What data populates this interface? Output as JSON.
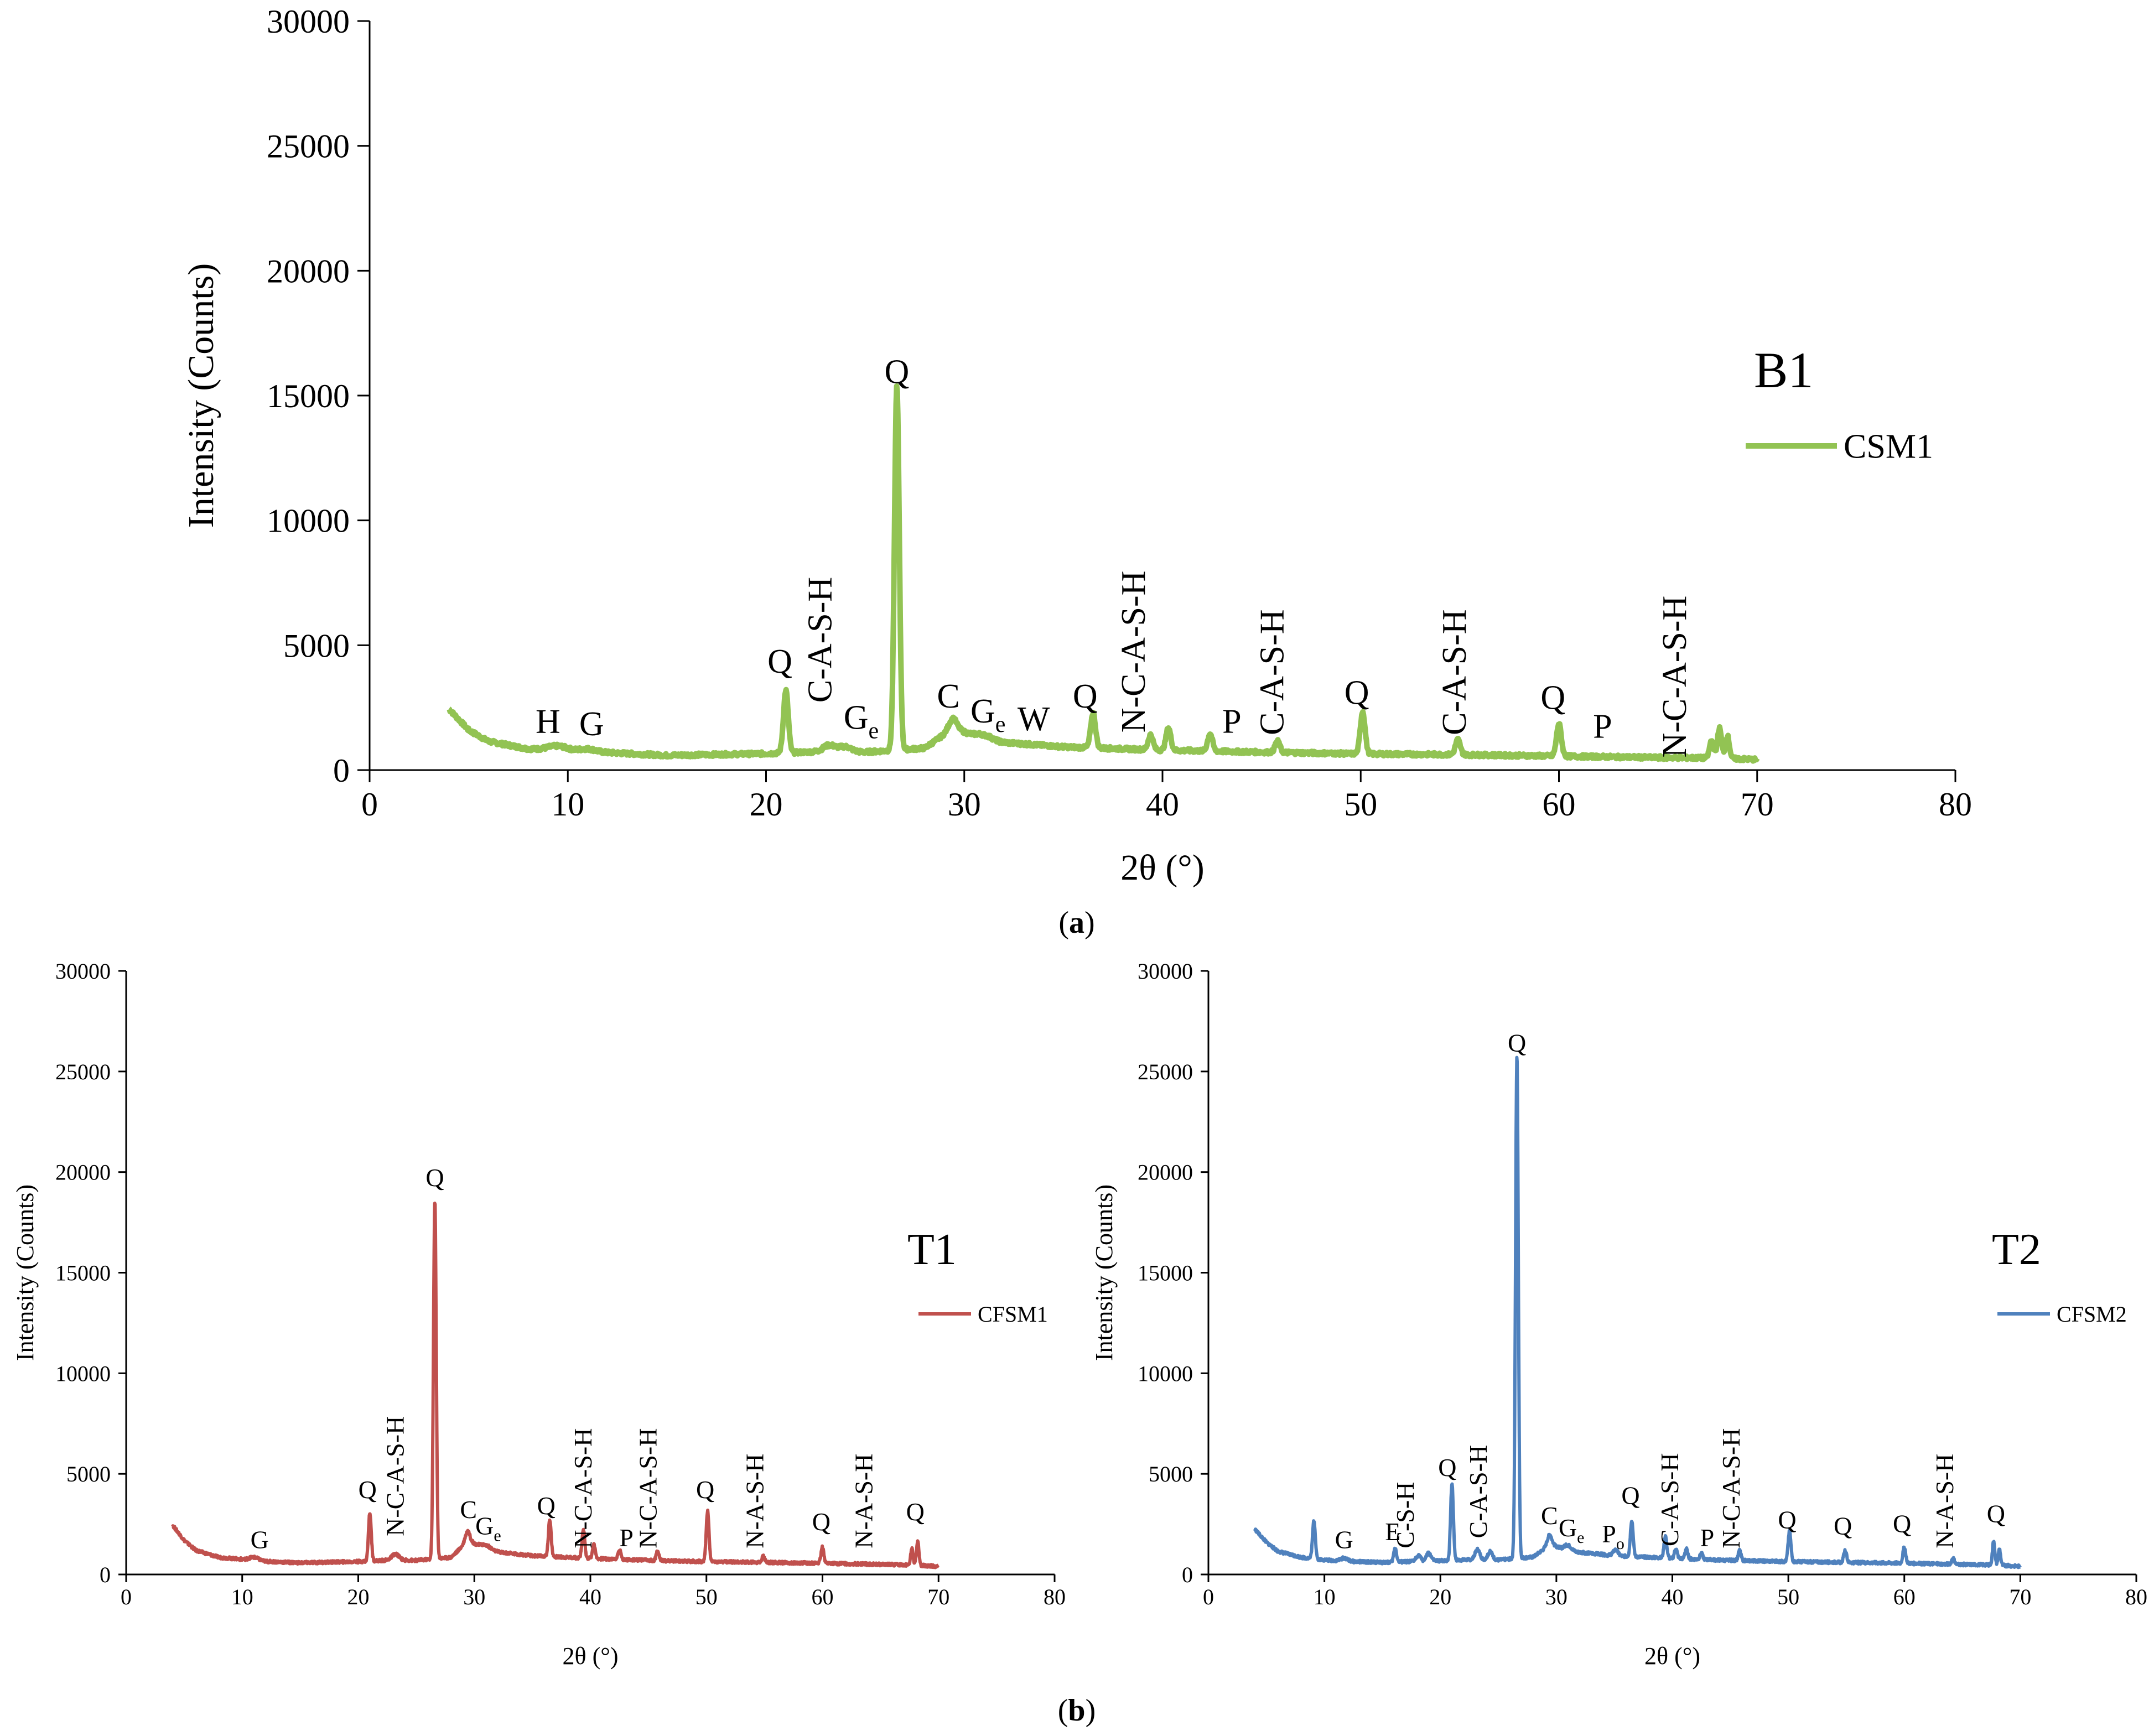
{
  "captions": {
    "a": "(a)",
    "a_letter": "a",
    "b": "(b)",
    "b_letter": "b"
  },
  "chart_data": [
    {
      "id": "a",
      "type": "line",
      "title": "B1",
      "legend": "CSM1",
      "legend_position": "right",
      "xlabel": "2θ (°)",
      "ylabel": "Intensity (Counts)",
      "xlim": [
        0,
        80
      ],
      "ylim": [
        0,
        30000
      ],
      "xticks": [
        0,
        10,
        20,
        30,
        40,
        50,
        60,
        70,
        80
      ],
      "yticks": [
        0,
        5000,
        10000,
        15000,
        20000,
        25000,
        30000
      ],
      "color": "#92C353",
      "baseline": [
        [
          4,
          2450
        ],
        [
          5,
          1600
        ],
        [
          6,
          1150
        ],
        [
          8,
          850
        ],
        [
          10,
          760
        ],
        [
          12,
          700
        ],
        [
          15,
          590
        ],
        [
          20,
          660
        ],
        [
          23,
          750
        ],
        [
          25,
          720
        ],
        [
          28,
          880
        ],
        [
          29.5,
          1700
        ],
        [
          31,
          1150
        ],
        [
          33,
          1050
        ],
        [
          35,
          930
        ],
        [
          40,
          800
        ],
        [
          45,
          720
        ],
        [
          50,
          650
        ],
        [
          55,
          620
        ],
        [
          60,
          560
        ],
        [
          65,
          500
        ],
        [
          68,
          480
        ],
        [
          70,
          420
        ]
      ],
      "peaks": [
        [
          9.5,
          180,
          0.5
        ],
        [
          11,
          120,
          0.4
        ],
        [
          21,
          2500,
          0.12
        ],
        [
          23.2,
          250,
          0.3
        ],
        [
          24,
          200,
          0.3
        ],
        [
          26.6,
          14600,
          0.12
        ],
        [
          29.4,
          400,
          0.2
        ],
        [
          31,
          250,
          0.4
        ],
        [
          36.5,
          1400,
          0.12
        ],
        [
          39.4,
          600,
          0.12
        ],
        [
          40.3,
          900,
          0.12
        ],
        [
          42.4,
          700,
          0.12
        ],
        [
          45.8,
          450,
          0.12
        ],
        [
          50.1,
          1700,
          0.12
        ],
        [
          54.9,
          600,
          0.12
        ],
        [
          60,
          1300,
          0.12
        ],
        [
          67.7,
          700,
          0.1
        ],
        [
          68.1,
          1200,
          0.1
        ],
        [
          68.5,
          900,
          0.1
        ]
      ],
      "annotations": [
        {
          "text": "H",
          "x": 9,
          "y": 1500
        },
        {
          "text": "G",
          "x": 11.2,
          "y": 1400
        },
        {
          "text": "Q",
          "x": 20.7,
          "y": 3900
        },
        {
          "text": "C-A-S-H",
          "x": 23.3,
          "y": 2700,
          "vertical": true
        },
        {
          "text": "G",
          "sub": "e",
          "x": 24.8,
          "y": 1650
        },
        {
          "text": "Q",
          "x": 26.6,
          "y": 15500
        },
        {
          "text": "C",
          "x": 29.2,
          "y": 2500
        },
        {
          "text": "G",
          "sub": "e",
          "x": 31.2,
          "y": 1900
        },
        {
          "text": "W",
          "x": 33.5,
          "y": 1600
        },
        {
          "text": "Q",
          "x": 36.1,
          "y": 2500
        },
        {
          "text": "N-C-A-S-H",
          "x": 39.1,
          "y": 1500,
          "vertical": true
        },
        {
          "text": "P",
          "x": 43.5,
          "y": 1500
        },
        {
          "text": "C-A-S-H",
          "x": 46.1,
          "y": 1400,
          "vertical": true
        },
        {
          "text": "Q",
          "x": 49.8,
          "y": 2650
        },
        {
          "text": "C-A-S-H",
          "x": 55.3,
          "y": 1400,
          "vertical": true
        },
        {
          "text": "Q",
          "x": 59.7,
          "y": 2450
        },
        {
          "text": "P",
          "x": 62.2,
          "y": 1300
        },
        {
          "text": "N-C-A-S-H",
          "x": 66.4,
          "y": 500,
          "vertical": true
        }
      ]
    },
    {
      "id": "T1",
      "type": "line",
      "title": "T1",
      "legend": "CFSM1",
      "legend_position": "right",
      "xlabel": "2θ (°)",
      "ylabel": "Intensity (Counts)",
      "xlim": [
        0,
        80
      ],
      "ylim": [
        0,
        30000
      ],
      "xticks": [
        0,
        10,
        20,
        30,
        40,
        50,
        60,
        70,
        80
      ],
      "yticks": [
        0,
        5000,
        10000,
        15000,
        20000,
        25000,
        30000
      ],
      "color": "#C0504D",
      "baseline": [
        [
          4,
          2450
        ],
        [
          5,
          1700
        ],
        [
          6,
          1200
        ],
        [
          8,
          850
        ],
        [
          10,
          750
        ],
        [
          12,
          650
        ],
        [
          15,
          580
        ],
        [
          20,
          640
        ],
        [
          23,
          720
        ],
        [
          25,
          700
        ],
        [
          28,
          850
        ],
        [
          29.5,
          1700
        ],
        [
          31,
          1200
        ],
        [
          33,
          1050
        ],
        [
          35,
          930
        ],
        [
          40,
          800
        ],
        [
          45,
          700
        ],
        [
          50,
          640
        ],
        [
          55,
          600
        ],
        [
          60,
          560
        ],
        [
          65,
          500
        ],
        [
          68,
          470
        ],
        [
          70,
          400
        ]
      ],
      "peaks": [
        [
          11,
          150,
          0.4
        ],
        [
          21,
          2400,
          0.12
        ],
        [
          23.2,
          300,
          0.3
        ],
        [
          26.6,
          17800,
          0.12
        ],
        [
          29.4,
          500,
          0.2
        ],
        [
          31,
          250,
          0.4
        ],
        [
          36.5,
          1800,
          0.12
        ],
        [
          39.4,
          1400,
          0.12
        ],
        [
          40.3,
          700,
          0.12
        ],
        [
          42.5,
          500,
          0.12
        ],
        [
          45.8,
          500,
          0.12
        ],
        [
          50.1,
          2500,
          0.12
        ],
        [
          54.9,
          300,
          0.12
        ],
        [
          60,
          800,
          0.12
        ],
        [
          67.7,
          800,
          0.1
        ],
        [
          68.2,
          1200,
          0.1
        ]
      ],
      "annotations": [
        {
          "text": "G",
          "x": 11.5,
          "y": 1300
        },
        {
          "text": "Q",
          "x": 20.8,
          "y": 3800
        },
        {
          "text": "N-C-A-S-H",
          "x": 23.9,
          "y": 1900,
          "vertical": true
        },
        {
          "text": "Q",
          "x": 26.6,
          "y": 19300
        },
        {
          "text": "C",
          "x": 29.5,
          "y": 2800
        },
        {
          "text": "G",
          "sub": "e",
          "x": 31.2,
          "y": 2000
        },
        {
          "text": "Q",
          "x": 36.2,
          "y": 3000
        },
        {
          "text": "N-C-A-S-H",
          "x": 40.1,
          "y": 1300,
          "vertical": true
        },
        {
          "text": "P",
          "x": 43.1,
          "y": 1400
        },
        {
          "text": "N-C-A-S-H",
          "x": 45.7,
          "y": 1300,
          "vertical": true
        },
        {
          "text": "Q",
          "x": 49.9,
          "y": 3800
        },
        {
          "text": "N-A-S-H",
          "x": 54.9,
          "y": 1300,
          "vertical": true
        },
        {
          "text": "Q",
          "x": 59.9,
          "y": 2200
        },
        {
          "text": "N-A-S-H",
          "x": 64.3,
          "y": 1300,
          "vertical": true
        },
        {
          "text": "Q",
          "x": 68.0,
          "y": 2700
        }
      ]
    },
    {
      "id": "T2",
      "type": "line",
      "title": "T2",
      "legend": "CFSM2",
      "legend_position": "right",
      "xlabel": "2θ (°)",
      "ylabel": "Intensity (Counts)",
      "xlim": [
        0,
        80
      ],
      "ylim": [
        0,
        30000
      ],
      "xticks": [
        0,
        10,
        20,
        30,
        40,
        50,
        60,
        70,
        80
      ],
      "yticks": [
        0,
        5000,
        10000,
        15000,
        20000,
        25000,
        30000
      ],
      "color": "#4F81BD",
      "baseline": [
        [
          4,
          2250
        ],
        [
          5,
          1600
        ],
        [
          6,
          1150
        ],
        [
          8,
          850
        ],
        [
          10,
          720
        ],
        [
          12,
          650
        ],
        [
          15,
          600
        ],
        [
          20,
          680
        ],
        [
          23,
          750
        ],
        [
          25,
          720
        ],
        [
          28,
          870
        ],
        [
          29.5,
          1500
        ],
        [
          31,
          1150
        ],
        [
          33,
          1050
        ],
        [
          35,
          930
        ],
        [
          40,
          800
        ],
        [
          45,
          700
        ],
        [
          50,
          640
        ],
        [
          55,
          600
        ],
        [
          60,
          560
        ],
        [
          65,
          500
        ],
        [
          68,
          470
        ],
        [
          70,
          400
        ]
      ],
      "peaks": [
        [
          9.1,
          1900,
          0.12
        ],
        [
          11.7,
          150,
          0.3
        ],
        [
          16.1,
          700,
          0.12
        ],
        [
          18.1,
          300,
          0.2
        ],
        [
          19,
          400,
          0.2
        ],
        [
          21,
          3800,
          0.12
        ],
        [
          23.2,
          500,
          0.2
        ],
        [
          24.3,
          400,
          0.2
        ],
        [
          26.6,
          25000,
          0.12
        ],
        [
          29.4,
          500,
          0.2
        ],
        [
          31,
          300,
          0.3
        ],
        [
          35.1,
          300,
          0.2
        ],
        [
          36.5,
          1800,
          0.12
        ],
        [
          39.4,
          1100,
          0.12
        ],
        [
          40.3,
          500,
          0.12
        ],
        [
          41.2,
          500,
          0.12
        ],
        [
          42.5,
          300,
          0.12
        ],
        [
          45.8,
          500,
          0.12
        ],
        [
          50.1,
          1500,
          0.12
        ],
        [
          54.9,
          600,
          0.12
        ],
        [
          60,
          800,
          0.12
        ],
        [
          64.2,
          300,
          0.12
        ],
        [
          67.7,
          1200,
          0.1
        ],
        [
          68.2,
          800,
          0.1
        ]
      ],
      "annotations": [
        {
          "text": "G",
          "x": 11.7,
          "y": 1300
        },
        {
          "text": "E",
          "x": 15.9,
          "y": 1700
        },
        {
          "text": "C-S-H",
          "x": 17.7,
          "y": 1300,
          "vertical": true
        },
        {
          "text": "Q",
          "x": 20.6,
          "y": 4900
        },
        {
          "text": "C-A-S-H",
          "x": 24.0,
          "y": 1800,
          "vertical": true
        },
        {
          "text": "Q",
          "x": 26.6,
          "y": 26000
        },
        {
          "text": "C",
          "x": 29.4,
          "y": 2500
        },
        {
          "text": "G",
          "sub": "e",
          "x": 31.3,
          "y": 1900
        },
        {
          "text": "P",
          "sub": "o",
          "x": 34.9,
          "y": 1600
        },
        {
          "text": "Q",
          "x": 36.4,
          "y": 3500
        },
        {
          "text": "C-A-S-H",
          "x": 40.5,
          "y": 1400,
          "vertical": true
        },
        {
          "text": "P",
          "x": 43.0,
          "y": 1400
        },
        {
          "text": "N-C-A-S-H",
          "x": 45.8,
          "y": 1300,
          "vertical": true
        },
        {
          "text": "Q",
          "x": 49.9,
          "y": 2300
        },
        {
          "text": "Q",
          "x": 54.7,
          "y": 2000
        },
        {
          "text": "Q",
          "x": 59.8,
          "y": 2100
        },
        {
          "text": "N-A-S-H",
          "x": 64.2,
          "y": 1300,
          "vertical": true
        },
        {
          "text": "Q",
          "x": 67.9,
          "y": 2600
        }
      ]
    }
  ]
}
